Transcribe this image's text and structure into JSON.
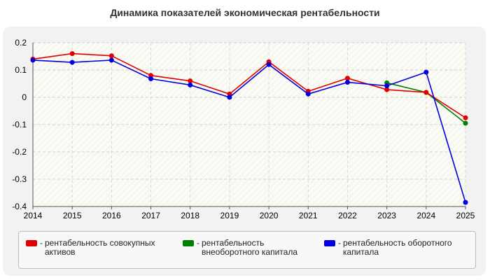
{
  "chart_data": {
    "type": "line",
    "title": "Динамика показателей экономическая рентабельности",
    "x": [
      "2014",
      "2015",
      "2016",
      "2017",
      "2018",
      "2019",
      "2020",
      "2021",
      "2022",
      "2023",
      "2024",
      "2025"
    ],
    "ylim": [
      -0.4,
      0.2
    ],
    "yticks": [
      "0.2",
      "0.1",
      "0",
      "-0.1",
      "-0.2",
      "-0.3",
      "-0.4"
    ],
    "grid": true,
    "legend_position": "bottom",
    "series": [
      {
        "name": "рентабельность совокупных активов",
        "color": "#e00000",
        "values": [
          0.14,
          0.16,
          0.152,
          0.08,
          0.06,
          0.012,
          0.13,
          0.022,
          0.07,
          0.028,
          0.018,
          -0.075
        ]
      },
      {
        "name": "рентабельность внеоборотного капитала",
        "color": "#008000",
        "values": [
          null,
          null,
          null,
          null,
          null,
          null,
          null,
          null,
          null,
          0.053,
          0.018,
          -0.095
        ]
      },
      {
        "name": "рентабельность оборотного капитала",
        "color": "#0000e0",
        "values": [
          0.136,
          0.128,
          0.136,
          0.068,
          0.045,
          0.0,
          0.12,
          0.012,
          0.055,
          0.042,
          0.092,
          -0.385
        ]
      }
    ]
  },
  "legend": {
    "items": [
      {
        "prefix": "-",
        "label": "рентабельность совокупных активов"
      },
      {
        "prefix": "-",
        "label": "рентабельность внеоборотного капитала"
      },
      {
        "prefix": "-",
        "label": "рентабельность оборотного капитала"
      }
    ]
  }
}
